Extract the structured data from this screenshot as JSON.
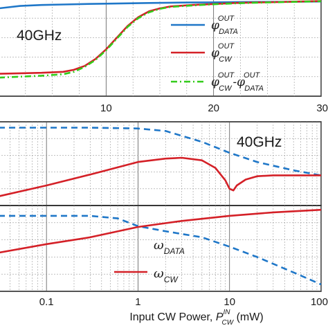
{
  "colors": {
    "blue": "#1f77c8",
    "red": "#d42027",
    "green": "#33cc1a",
    "grid": "#9a9a9a",
    "frame": "#1a1a1a"
  },
  "chart_data": [
    {
      "type": "line",
      "annotation": "40GHz",
      "xlim": [
        0,
        30
      ],
      "x_tick_labels": [
        "10",
        "20",
        "30"
      ],
      "x_ticks": [
        10,
        20,
        30
      ],
      "grid": true,
      "legend_position": "right",
      "series": [
        {
          "name_symbol": "φ",
          "name_sup": "OUT",
          "name_sub": "DATA",
          "color": "blue",
          "style": "solid",
          "x": [
            0,
            2,
            4,
            6,
            8,
            10,
            12,
            14,
            16,
            18,
            20,
            22,
            24,
            26,
            28,
            30
          ],
          "y": [
            0.9,
            0.925,
            0.935,
            0.94,
            0.945,
            0.948,
            0.952,
            0.955,
            0.958,
            0.96,
            0.962,
            0.964,
            0.966,
            0.967,
            0.968,
            0.97
          ]
        },
        {
          "name_symbol": "φ",
          "name_sup": "OUT",
          "name_sub": "CW",
          "color": "red",
          "style": "solid",
          "x": [
            0,
            2,
            4,
            6,
            7,
            8,
            9,
            10,
            11,
            12,
            13,
            14,
            15,
            16,
            18,
            20,
            22,
            24,
            26,
            28,
            30
          ],
          "y": [
            0.23,
            0.235,
            0.24,
            0.25,
            0.27,
            0.31,
            0.38,
            0.48,
            0.6,
            0.72,
            0.81,
            0.87,
            0.9,
            0.92,
            0.935,
            0.945,
            0.955,
            0.96,
            0.965,
            0.97,
            0.975
          ]
        },
        {
          "name_symbol": "φ",
          "name_sup": "OUT",
          "name_sub": "CW",
          "name_minus_symbol": "φ",
          "name_minus_sup": "OUT",
          "name_minus_sub": "DATA",
          "color": "green",
          "style": "dashdot",
          "x": [
            0,
            2,
            4,
            6,
            7,
            8,
            9,
            10,
            11,
            12,
            13,
            14,
            15,
            16,
            18,
            20,
            22,
            24,
            26,
            28,
            30
          ],
          "y": [
            0.19,
            0.2,
            0.21,
            0.225,
            0.25,
            0.3,
            0.37,
            0.47,
            0.59,
            0.71,
            0.8,
            0.86,
            0.895,
            0.915,
            0.93,
            0.942,
            0.952,
            0.958,
            0.963,
            0.968,
            0.973
          ]
        }
      ]
    },
    {
      "type": "line",
      "annotation": "40GHz",
      "xscale": "log",
      "xlim": [
        0.03,
        100
      ],
      "grid": true,
      "series": [
        {
          "color": "blue",
          "style": "dashed",
          "x": [
            0.03,
            0.1,
            0.3,
            1,
            2,
            5,
            10,
            20,
            50,
            100
          ],
          "y": [
            0.93,
            0.93,
            0.93,
            0.92,
            0.89,
            0.76,
            0.63,
            0.52,
            0.42,
            0.36
          ]
        },
        {
          "color": "red",
          "style": "solid",
          "x": [
            0.03,
            0.1,
            0.3,
            1,
            2,
            3,
            5,
            7,
            9,
            10,
            11,
            12,
            15,
            20,
            30,
            50,
            100
          ],
          "y": [
            0.11,
            0.24,
            0.37,
            0.52,
            0.56,
            0.57,
            0.54,
            0.45,
            0.3,
            0.2,
            0.18,
            0.24,
            0.31,
            0.35,
            0.36,
            0.36,
            0.36
          ]
        }
      ]
    },
    {
      "type": "line",
      "xscale": "log",
      "xlim": [
        0.03,
        100
      ],
      "x_tick_labels": [
        "0.1",
        "1",
        "10",
        "100"
      ],
      "x_ticks": [
        0.1,
        1,
        10,
        100
      ],
      "xlabel_text": "Input CW Power, ",
      "xlabel_symbol": "P",
      "xlabel_sup": "IN",
      "xlabel_sub": "CW",
      "xlabel_unit": " (mW)",
      "grid": true,
      "legend_position": "bottom-center",
      "series": [
        {
          "name_symbol": "ω",
          "name_sub": "DATA",
          "color": "blue",
          "style": "dashed",
          "x": [
            0.03,
            0.1,
            0.3,
            0.6,
            1,
            2,
            5,
            10,
            20,
            50,
            100
          ],
          "y": [
            0.88,
            0.88,
            0.88,
            0.85,
            0.76,
            0.7,
            0.63,
            0.52,
            0.4,
            0.22,
            0.08
          ]
        },
        {
          "name_symbol": "ω",
          "name_sub": "CW",
          "color": "red",
          "style": "solid",
          "x": [
            0.03,
            0.1,
            0.3,
            1,
            3,
            10,
            30,
            100
          ],
          "y": [
            0.45,
            0.55,
            0.63,
            0.75,
            0.82,
            0.88,
            0.92,
            0.95
          ]
        }
      ]
    }
  ]
}
